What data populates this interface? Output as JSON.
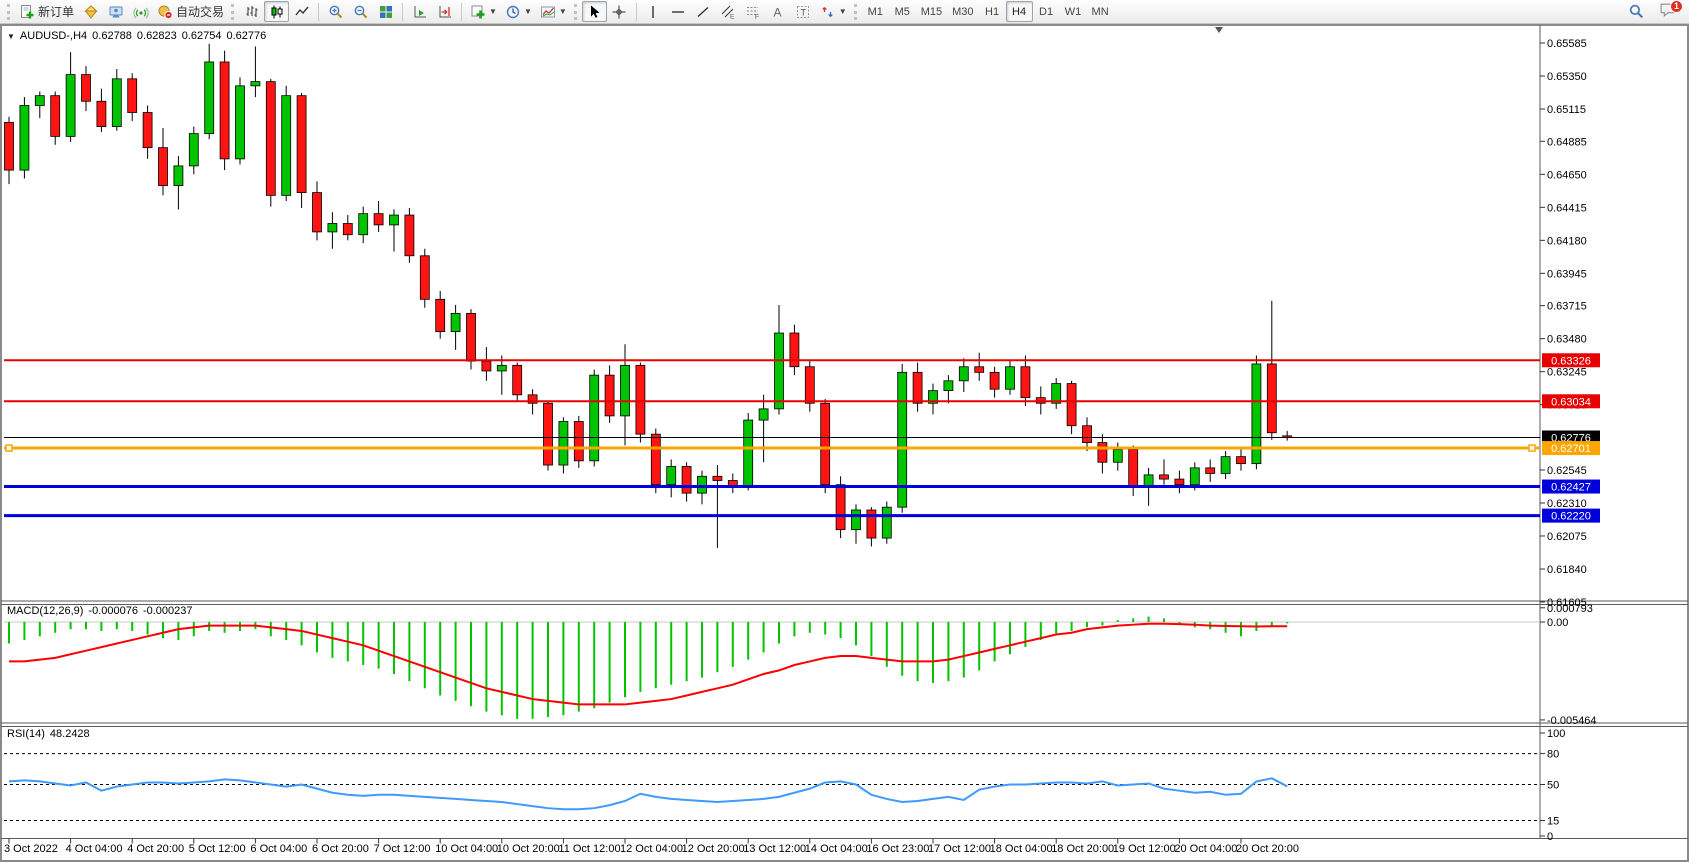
{
  "toolbar": {
    "new_order": "新订单",
    "auto_trading": "自动交易",
    "timeframes": [
      "M1",
      "M5",
      "M15",
      "M30",
      "H1",
      "H4",
      "D1",
      "W1",
      "MN"
    ],
    "active_timeframe": "H4",
    "notification_badge": "1",
    "icons": [
      "new-order-icon",
      "market-watch-icon",
      "navigator-icon",
      "signals-icon",
      "auto-trading-icon",
      "bar-chart-type-icon",
      "candlestick-chart-type-icon",
      "line-chart-type-icon",
      "zoom-in-icon",
      "zoom-out-icon",
      "tile-windows-icon",
      "auto-scroll-icon",
      "chart-shift-icon",
      "indicators-add-icon",
      "periods-icon",
      "templates-icon",
      "cursor-icon",
      "crosshair-icon",
      "vertical-line-icon",
      "horizontal-line-icon",
      "trendline-icon",
      "equidistant-channel-icon",
      "fibonacci-icon",
      "text-icon",
      "text-label-icon",
      "arrows-icon",
      "search-icon",
      "chat-icon"
    ]
  },
  "chart": {
    "title": "AUDUSD-,H4",
    "open": "0.62788",
    "high": "0.62823",
    "low": "0.62754",
    "close": "0.62776"
  },
  "indicators": {
    "macd": {
      "label": "MACD(12,26,9)",
      "main": "-0.000076",
      "signal": "-0.000237"
    },
    "rsi": {
      "label": "RSI(14)",
      "value": "48.2428"
    }
  },
  "chart_data": {
    "type": "candlestick",
    "symbol": "AUDUSD-",
    "timeframe": "H4",
    "ohlc_current": [
      0.62788,
      0.62823,
      0.62754,
      0.62776
    ],
    "price_axis_ticks": [
      0.65585,
      0.6535,
      0.65115,
      0.64885,
      0.6465,
      0.64415,
      0.6418,
      0.63945,
      0.63715,
      0.6348,
      0.63245,
      0.6301,
      0.62545,
      0.6231,
      0.62075,
      0.6184,
      0.61605
    ],
    "time_labels": [
      "3 Oct 2022",
      "4 Oct 04:00",
      "4 Oct 20:00",
      "5 Oct 12:00",
      "6 Oct 04:00",
      "6 Oct 20:00",
      "7 Oct 12:00",
      "10 Oct 04:00",
      "10 Oct 20:00",
      "11 Oct 12:00",
      "12 Oct 04:00",
      "12 Oct 20:00",
      "13 Oct 12:00",
      "14 Oct 04:00",
      "16 Oct 23:00",
      "17 Oct 12:00",
      "18 Oct 04:00",
      "18 Oct 20:00",
      "19 Oct 12:00",
      "20 Oct 04:00",
      "20 Oct 20:00"
    ],
    "horizontal_lines": [
      {
        "price": 0.63326,
        "label": "0.63326",
        "color": "#e80000",
        "width": 2
      },
      {
        "price": 0.63034,
        "label": "0.63034",
        "color": "#e80000",
        "width": 2
      },
      {
        "price": 0.62776,
        "label": "0.62776",
        "color": "#000000",
        "width": 1,
        "role": "current-price"
      },
      {
        "price": 0.62701,
        "label": "0.62701",
        "color": "#ffa500",
        "width": 3,
        "selected": true
      },
      {
        "price": 0.62427,
        "label": "0.62427",
        "color": "#0000dd",
        "width": 3
      },
      {
        "price": 0.6222,
        "label": "0.62220",
        "color": "#0000dd",
        "width": 3
      }
    ],
    "colors": {
      "bull": "#00c400",
      "bear": "#ff1414",
      "outline": "#000000",
      "axis_text": "#000000"
    },
    "candles": [
      [
        0.6502,
        0.6506,
        0.6458,
        0.6468
      ],
      [
        0.6468,
        0.652,
        0.6462,
        0.6514
      ],
      [
        0.6514,
        0.6524,
        0.6505,
        0.6521
      ],
      [
        0.6521,
        0.6524,
        0.6486,
        0.6492
      ],
      [
        0.6492,
        0.6552,
        0.6488,
        0.6536
      ],
      [
        0.6536,
        0.6542,
        0.651,
        0.6517
      ],
      [
        0.6517,
        0.6526,
        0.6495,
        0.6499
      ],
      [
        0.6499,
        0.654,
        0.6496,
        0.6533
      ],
      [
        0.6533,
        0.6537,
        0.6503,
        0.6509
      ],
      [
        0.6509,
        0.6514,
        0.6476,
        0.6484
      ],
      [
        0.6484,
        0.6498,
        0.645,
        0.6457
      ],
      [
        0.6457,
        0.6478,
        0.644,
        0.6471
      ],
      [
        0.6471,
        0.6499,
        0.6465,
        0.6494
      ],
      [
        0.6494,
        0.6558,
        0.649,
        0.6545
      ],
      [
        0.6545,
        0.6553,
        0.6468,
        0.6476
      ],
      [
        0.6476,
        0.6534,
        0.6472,
        0.6528
      ],
      [
        0.6528,
        0.6556,
        0.652,
        0.6531
      ],
      [
        0.6531,
        0.6533,
        0.6442,
        0.645
      ],
      [
        0.645,
        0.6528,
        0.6446,
        0.6521
      ],
      [
        0.6521,
        0.6523,
        0.6441,
        0.6452
      ],
      [
        0.6452,
        0.646,
        0.6418,
        0.6424
      ],
      [
        0.6424,
        0.6438,
        0.6412,
        0.643
      ],
      [
        0.643,
        0.6436,
        0.6418,
        0.6422
      ],
      [
        0.6422,
        0.6442,
        0.6416,
        0.6437
      ],
      [
        0.6437,
        0.6446,
        0.6424,
        0.6429
      ],
      [
        0.6429,
        0.644,
        0.641,
        0.6436
      ],
      [
        0.6436,
        0.6441,
        0.6402,
        0.6407
      ],
      [
        0.6407,
        0.6412,
        0.637,
        0.6376
      ],
      [
        0.6376,
        0.6382,
        0.6348,
        0.6353
      ],
      [
        0.6353,
        0.6372,
        0.634,
        0.6366
      ],
      [
        0.6366,
        0.6369,
        0.6326,
        0.6332
      ],
      [
        0.6332,
        0.6342,
        0.6318,
        0.6325
      ],
      [
        0.6325,
        0.6336,
        0.6308,
        0.6329
      ],
      [
        0.6329,
        0.6331,
        0.6303,
        0.6308
      ],
      [
        0.6308,
        0.6312,
        0.6294,
        0.6302
      ],
      [
        0.6302,
        0.6304,
        0.6254,
        0.6258
      ],
      [
        0.6258,
        0.6292,
        0.6252,
        0.6289
      ],
      [
        0.6289,
        0.6293,
        0.6256,
        0.6261
      ],
      [
        0.6261,
        0.6326,
        0.6257,
        0.6322
      ],
      [
        0.6322,
        0.6329,
        0.6288,
        0.6293
      ],
      [
        0.6293,
        0.6344,
        0.6272,
        0.6329
      ],
      [
        0.6329,
        0.6331,
        0.6274,
        0.628
      ],
      [
        0.628,
        0.6284,
        0.6238,
        0.6244
      ],
      [
        0.6244,
        0.6262,
        0.6235,
        0.6257
      ],
      [
        0.6257,
        0.626,
        0.6232,
        0.6238
      ],
      [
        0.6238,
        0.6254,
        0.623,
        0.625
      ],
      [
        0.625,
        0.6258,
        0.6199,
        0.6247
      ],
      [
        0.6247,
        0.6252,
        0.6238,
        0.6243
      ],
      [
        0.6243,
        0.6295,
        0.624,
        0.629
      ],
      [
        0.629,
        0.6308,
        0.626,
        0.6298
      ],
      [
        0.6298,
        0.6372,
        0.6294,
        0.6352
      ],
      [
        0.6352,
        0.6358,
        0.6322,
        0.6328
      ],
      [
        0.6328,
        0.6332,
        0.6296,
        0.6302
      ],
      [
        0.6302,
        0.6305,
        0.6238,
        0.6244
      ],
      [
        0.6244,
        0.625,
        0.6206,
        0.6212
      ],
      [
        0.6212,
        0.623,
        0.6202,
        0.6226
      ],
      [
        0.6226,
        0.6228,
        0.62,
        0.6206
      ],
      [
        0.6206,
        0.6232,
        0.6202,
        0.6228
      ],
      [
        0.6228,
        0.633,
        0.6224,
        0.6324
      ],
      [
        0.6324,
        0.6331,
        0.6296,
        0.6302
      ],
      [
        0.6302,
        0.6316,
        0.6294,
        0.6311
      ],
      [
        0.6311,
        0.6322,
        0.6302,
        0.6318
      ],
      [
        0.6318,
        0.6334,
        0.631,
        0.6328
      ],
      [
        0.6328,
        0.6338,
        0.6318,
        0.6324
      ],
      [
        0.6324,
        0.6328,
        0.6306,
        0.6312
      ],
      [
        0.6312,
        0.6332,
        0.6308,
        0.6328
      ],
      [
        0.6328,
        0.6336,
        0.63,
        0.6306
      ],
      [
        0.6306,
        0.6314,
        0.6294,
        0.6302
      ],
      [
        0.6302,
        0.632,
        0.6298,
        0.6316
      ],
      [
        0.6316,
        0.6318,
        0.628,
        0.6286
      ],
      [
        0.6286,
        0.6292,
        0.6268,
        0.6274
      ],
      [
        0.6274,
        0.628,
        0.6252,
        0.626
      ],
      [
        0.626,
        0.6274,
        0.6254,
        0.6269
      ],
      [
        0.6269,
        0.6272,
        0.6236,
        0.6242
      ],
      [
        0.6242,
        0.6256,
        0.6229,
        0.6251
      ],
      [
        0.6251,
        0.6262,
        0.6244,
        0.6248
      ],
      [
        0.6248,
        0.6254,
        0.6238,
        0.6244
      ],
      [
        0.6244,
        0.626,
        0.624,
        0.6256
      ],
      [
        0.6256,
        0.6262,
        0.6246,
        0.6252
      ],
      [
        0.6252,
        0.6268,
        0.6248,
        0.6264
      ],
      [
        0.6264,
        0.627,
        0.6254,
        0.6259
      ],
      [
        0.6259,
        0.6336,
        0.6255,
        0.633
      ],
      [
        0.633,
        0.6375,
        0.6276,
        0.6281
      ],
      [
        0.62788,
        0.62823,
        0.62754,
        0.62776
      ]
    ],
    "macd": {
      "params": "12,26,9",
      "axis_labels": [
        "0.000793",
        "0.00",
        "-0.005464"
      ],
      "colors": {
        "histogram": "#00c400",
        "signal": "#ff0000"
      },
      "histogram": [
        -0.0012,
        -0.001,
        -0.0008,
        -0.0006,
        -0.0004,
        -0.0004,
        -0.0005,
        -0.0004,
        -0.0005,
        -0.0007,
        -0.0009,
        -0.001,
        -0.0008,
        -0.0005,
        -0.0006,
        -0.0005,
        -0.0004,
        -0.0008,
        -0.001,
        -0.0013,
        -0.0017,
        -0.002,
        -0.0022,
        -0.0024,
        -0.0026,
        -0.0029,
        -0.0033,
        -0.0037,
        -0.0041,
        -0.0044,
        -0.0047,
        -0.005,
        -0.0052,
        -0.0054,
        -0.0054,
        -0.0053,
        -0.0052,
        -0.005,
        -0.0048,
        -0.0045,
        -0.0042,
        -0.0039,
        -0.0037,
        -0.0035,
        -0.0033,
        -0.0031,
        -0.0028,
        -0.0025,
        -0.0021,
        -0.0017,
        -0.0012,
        -0.0008,
        -0.0006,
        -0.0007,
        -0.0009,
        -0.0013,
        -0.0019,
        -0.0025,
        -0.003,
        -0.0033,
        -0.0034,
        -0.0033,
        -0.0031,
        -0.0027,
        -0.0022,
        -0.0018,
        -0.0014,
        -0.001,
        -0.0007,
        -0.0005,
        -0.0003,
        -0.0002,
        0.0001,
        0.0002,
        0.0003,
        0.0002,
        -0.0001,
        -0.0003,
        -0.0004,
        -0.0006,
        -0.0008,
        -0.0005,
        -0.0002,
        -7.6e-05
      ],
      "signal": [
        -0.0022,
        -0.0022,
        -0.0021,
        -0.002,
        -0.0018,
        -0.0016,
        -0.0014,
        -0.0012,
        -0.001,
        -0.0008,
        -0.0006,
        -0.0004,
        -0.0003,
        -0.0002,
        -0.0002,
        -0.0002,
        -0.0002,
        -0.0003,
        -0.0004,
        -0.0005,
        -0.0007,
        -0.0009,
        -0.0011,
        -0.0013,
        -0.0016,
        -0.0019,
        -0.0022,
        -0.0025,
        -0.0028,
        -0.0031,
        -0.0034,
        -0.0037,
        -0.0039,
        -0.0041,
        -0.0043,
        -0.0044,
        -0.0045,
        -0.0046,
        -0.0046,
        -0.0046,
        -0.0046,
        -0.0045,
        -0.0044,
        -0.0043,
        -0.0041,
        -0.0039,
        -0.0037,
        -0.0035,
        -0.0032,
        -0.0029,
        -0.0027,
        -0.0024,
        -0.0022,
        -0.002,
        -0.0019,
        -0.0019,
        -0.002,
        -0.0021,
        -0.0022,
        -0.0022,
        -0.0022,
        -0.0021,
        -0.0019,
        -0.0017,
        -0.0015,
        -0.0013,
        -0.0011,
        -0.0009,
        -0.0007,
        -0.0006,
        -0.0004,
        -0.0003,
        -0.0002,
        -0.00015,
        -0.0001,
        -0.0001,
        -0.00012,
        -0.00015,
        -0.0002,
        -0.00022,
        -0.00024,
        -0.00025,
        -0.00024,
        -0.000237
      ]
    },
    "rsi": {
      "period": 14,
      "levels": [
        80,
        50,
        15
      ],
      "axis_labels": [
        "100",
        "80",
        "50",
        "15",
        "0"
      ],
      "color": "#3d9afe",
      "values": [
        53,
        54,
        53,
        51,
        49,
        52,
        44,
        48,
        50,
        52,
        52,
        51,
        52,
        53,
        55,
        54,
        52,
        50,
        48,
        50,
        46,
        42,
        40,
        39,
        40,
        40,
        39,
        38,
        37,
        36,
        35,
        34,
        33,
        31,
        29,
        27,
        26,
        26,
        27,
        30,
        34,
        41,
        38,
        36,
        35,
        34,
        33,
        34,
        35,
        36,
        38,
        42,
        46,
        52,
        53,
        50,
        40,
        36,
        33,
        34,
        36,
        38,
        35,
        45,
        48,
        50,
        50,
        51,
        52,
        52,
        51,
        53,
        49,
        50,
        51,
        46,
        44,
        42,
        43,
        40,
        41,
        53,
        56,
        48.2428
      ]
    }
  }
}
